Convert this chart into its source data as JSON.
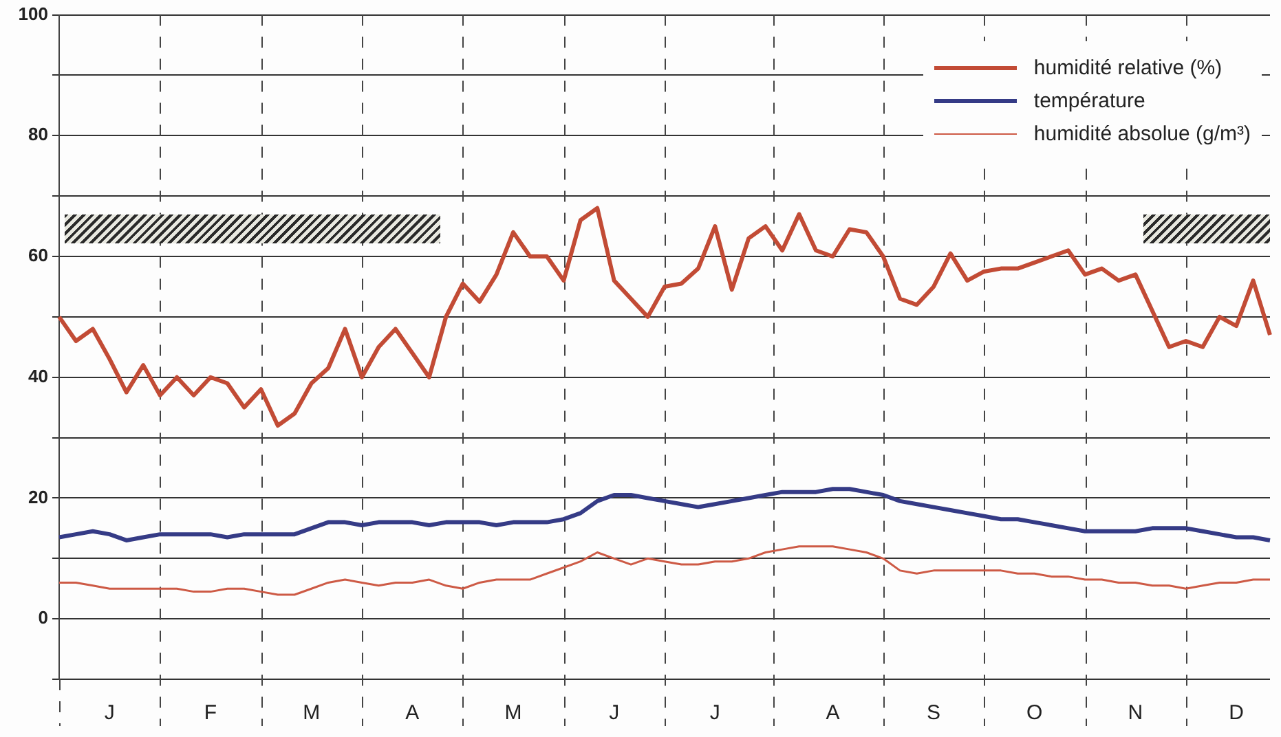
{
  "chart_data": {
    "type": "line",
    "ylim": [
      -10,
      100
    ],
    "categories": [
      null,
      null,
      null,
      "J",
      null,
      null,
      null,
      null,
      null,
      "F",
      null,
      null,
      null,
      null,
      null,
      "M",
      null,
      null,
      null,
      null,
      null,
      "A",
      null,
      null,
      null,
      null,
      null,
      "M",
      null,
      null,
      null,
      null,
      null,
      "J",
      null,
      null,
      null,
      null,
      null,
      "J",
      null,
      null,
      null,
      null,
      null,
      null,
      "A",
      null,
      null,
      null,
      null,
      null,
      "S",
      null,
      null,
      null,
      null,
      null,
      "O",
      null,
      null,
      null,
      null,
      null,
      "N",
      null,
      null,
      null,
      null,
      null,
      "D",
      null,
      null
    ],
    "yticks": [
      {
        "value": -10,
        "label": null
      },
      0,
      {
        "value": 10,
        "label": null
      },
      20,
      {
        "value": 30,
        "label": null
      },
      40,
      {
        "value": 50,
        "label": null
      },
      60,
      {
        "value": 70,
        "label": null
      },
      80,
      {
        "value": 90,
        "label": null
      },
      100
    ],
    "grid": true,
    "legend": "top right",
    "marker": "none",
    "line_style": "solid",
    "series": [
      {
        "name": "humidité relative (%)",
        "color": "#c24b35",
        "values": [
          50,
          46,
          48,
          43,
          37.5,
          42,
          37,
          40,
          37,
          40,
          39,
          35,
          38,
          32,
          34,
          39,
          41.5,
          48,
          40,
          45,
          48,
          44,
          40,
          50,
          55.5,
          52.5,
          57,
          64,
          60,
          60,
          56,
          66,
          68,
          56,
          53,
          50,
          55,
          55.5,
          58,
          65,
          54.5,
          63,
          65,
          61,
          67,
          61,
          60,
          64.5,
          64,
          60,
          53,
          52,
          55,
          60.5,
          56,
          57.5,
          58,
          58,
          59,
          60,
          61,
          57,
          58,
          56,
          57,
          51,
          45,
          46,
          45,
          50,
          48.5,
          56,
          47
        ]
      },
      {
        "name": "température",
        "color": "#353b86",
        "values": [
          13.5,
          14,
          14.5,
          14,
          13,
          13.5,
          14,
          14,
          14,
          14,
          13.5,
          14,
          14,
          14,
          14,
          15,
          16,
          16,
          15.5,
          16,
          16,
          16,
          15.5,
          16,
          16,
          16,
          15.5,
          16,
          16,
          16,
          16.5,
          17.5,
          19.5,
          20.5,
          20.5,
          20,
          19.5,
          19,
          18.5,
          19,
          19.5,
          20,
          20.5,
          21,
          21,
          21,
          21.5,
          21.5,
          21,
          20.5,
          19.5,
          19,
          18.5,
          18,
          17.5,
          17,
          16.5,
          16.5,
          16,
          15.5,
          15,
          14.5,
          14.5,
          14.5,
          14.5,
          15,
          15,
          15,
          14.5,
          14,
          13.5,
          13.5,
          13
        ]
      },
      {
        "name": "humidité absolue (g/m³)",
        "color": "#cd5a45",
        "values": [
          6,
          6,
          5.5,
          5,
          5,
          5,
          5,
          5,
          4.5,
          4.5,
          5,
          5,
          4.5,
          4,
          4,
          5,
          6,
          6.5,
          6,
          5.5,
          6,
          6,
          6.5,
          5.5,
          5,
          6,
          6.5,
          6.5,
          6.5,
          7.5,
          8.5,
          9.5,
          11,
          10,
          9,
          10,
          9.5,
          9,
          9,
          9.5,
          9.5,
          10,
          11,
          11.5,
          12,
          12,
          12,
          11.5,
          11,
          10,
          8,
          7.5,
          8,
          8,
          8,
          8,
          8,
          7.5,
          7.5,
          7,
          7,
          6.5,
          6.5,
          6,
          6,
          5.5,
          5.5,
          5,
          5.5,
          6,
          6,
          6.5,
          6.5
        ]
      }
    ]
  }
}
